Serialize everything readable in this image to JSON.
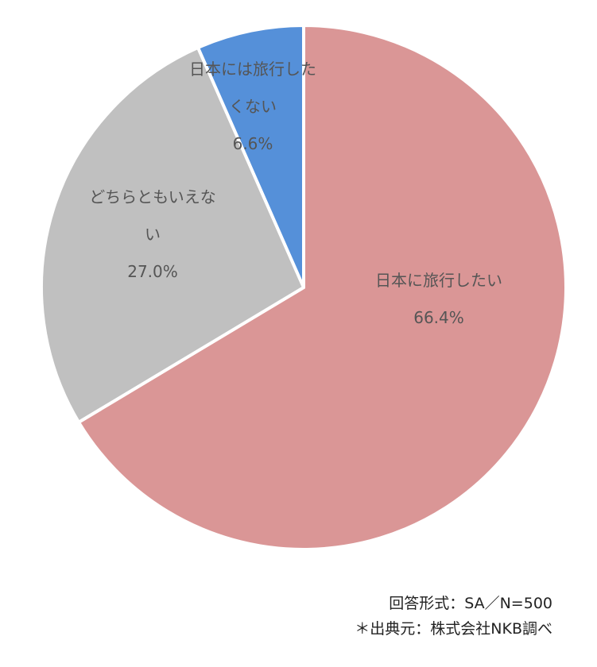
{
  "chart_data": {
    "type": "pie",
    "start": "12 o'clock, clockwise",
    "slices": [
      {
        "label_lines": [
          "日本に旅行したい"
        ],
        "percent_label": "66.4%",
        "value": 66.4,
        "color": "#da9696"
      },
      {
        "label_lines": [
          "どちらともいえな",
          "い"
        ],
        "percent_label": "27.0%",
        "value": 27.0,
        "color": "#c0c0c0"
      },
      {
        "label_lines": [
          "日本には旅行した",
          "くない"
        ],
        "percent_label": "6.6%",
        "value": 6.6,
        "color": "#5590d9"
      }
    ]
  },
  "notes": {
    "format": "回答形式：SA／N=500",
    "source": "＊出典元：株式会社NKB調べ"
  }
}
